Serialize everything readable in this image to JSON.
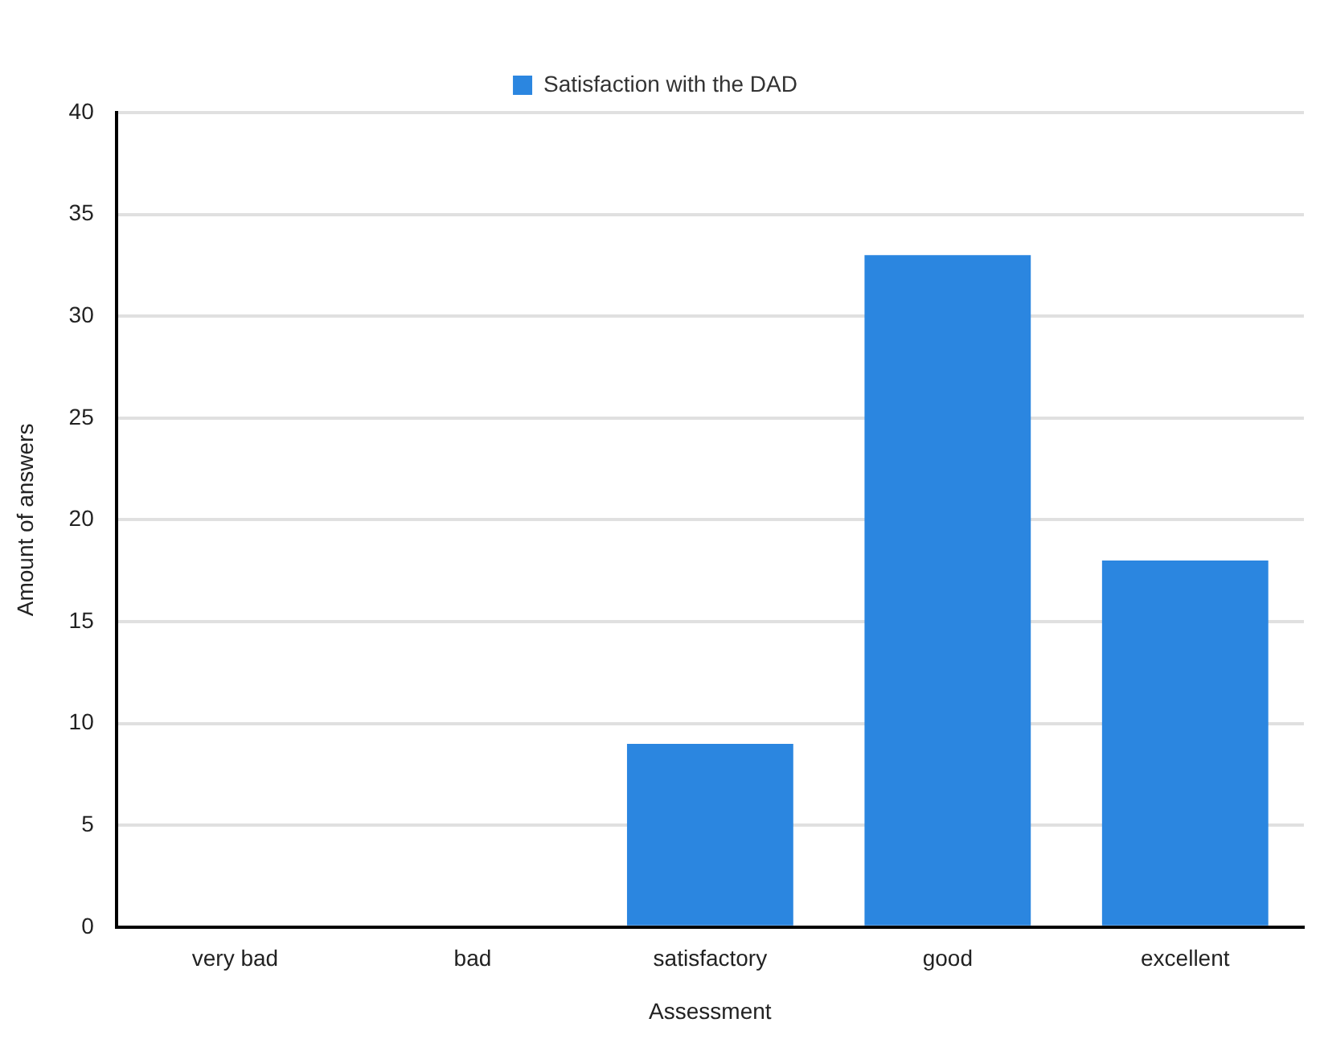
{
  "chart_data": {
    "type": "bar",
    "xlabel": "Assessment",
    "ylabel": "Amount of answers",
    "categories": [
      "very bad",
      "bad",
      "satisfactory",
      "good",
      "excellent"
    ],
    "series": [
      {
        "name": "Satisfaction with the DAD",
        "color": "#2b86e0",
        "values": [
          0,
          0,
          9,
          33,
          18
        ]
      }
    ],
    "ylim": [
      0,
      40
    ],
    "yticks": [
      0,
      5,
      10,
      15,
      20,
      25,
      30,
      35,
      40
    ],
    "grid": "y",
    "legend": "top"
  }
}
